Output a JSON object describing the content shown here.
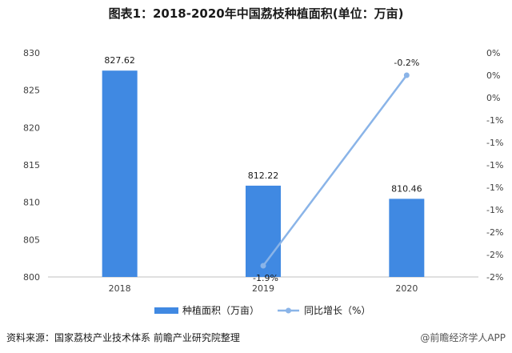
{
  "title": "图表1：2018-2020年中国荔枝种植面积(单位：万亩)",
  "source": "资料来源：国家荔枝产业技术体系 前瞻产业研究院整理",
  "credit": "@前瞻经济学人APP",
  "colors": {
    "bar": "#4089e2",
    "line": "#8ab4e8",
    "axis": "#bfbfbf"
  },
  "chart_data": {
    "type": "bar",
    "categories": [
      "2018",
      "2019",
      "2020"
    ],
    "series": [
      {
        "name": "种植面积（万亩）",
        "type": "bar",
        "axis": "left",
        "values": [
          827.62,
          812.22,
          810.46
        ],
        "labels": [
          "827.62",
          "812.22",
          "810.46"
        ]
      },
      {
        "name": "同比增长（%）",
        "type": "line",
        "axis": "right",
        "values": [
          null,
          -1.9,
          -0.2
        ],
        "labels": [
          "",
          "-1.9%",
          "-0.2%"
        ]
      }
    ],
    "y_left": {
      "ylim": [
        800,
        830
      ],
      "ticks": [
        "800",
        "805",
        "810",
        "815",
        "820",
        "825",
        "830"
      ]
    },
    "y_right": {
      "ylim": [
        -2.0,
        0.0
      ],
      "ticks": [
        "0%",
        "0%",
        "0%",
        "-1%",
        "-1%",
        "-1%",
        "-1%",
        "-1%",
        "-2%",
        "-2%",
        "-2%"
      ]
    },
    "legend_position": "bottom",
    "grid": false
  }
}
